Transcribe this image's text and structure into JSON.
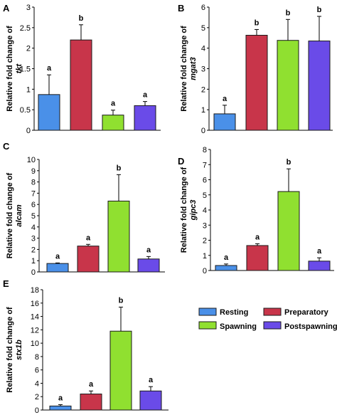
{
  "legend": {
    "items": [
      {
        "label": "Resting",
        "color": "#4a90e8"
      },
      {
        "label": "Preparatory",
        "color": "#c8354a"
      },
      {
        "label": "Spawning",
        "color": "#90e030"
      },
      {
        "label": "Postspawning",
        "color": "#6a4be8"
      }
    ]
  },
  "chart_data": [
    {
      "type": "bar",
      "panel_label": "A",
      "ylabel_prefix": "Relative fold change of",
      "ylabel_gene": "tkt",
      "ylim": [
        0,
        3
      ],
      "yticks": [
        "0",
        "0.5",
        "1",
        "1.5",
        "2",
        "2.5",
        "3"
      ],
      "categories": [
        "Resting",
        "Preparatory",
        "Spawning",
        "Postspawning"
      ],
      "values": [
        0.87,
        2.2,
        0.37,
        0.6
      ],
      "errors": [
        0.48,
        0.37,
        0.12,
        0.1
      ],
      "sig": [
        "a",
        "b",
        "a",
        "a"
      ],
      "colors": [
        "#4a90e8",
        "#c8354a",
        "#90e030",
        "#6a4be8"
      ]
    },
    {
      "type": "bar",
      "panel_label": "B",
      "ylabel_prefix": "Relative fold change of",
      "ylabel_gene": "mgat3",
      "ylim": [
        0,
        6
      ],
      "yticks": [
        "0",
        "1",
        "2",
        "3",
        "4",
        "5",
        "6"
      ],
      "categories": [
        "Resting",
        "Preparatory",
        "Spawning",
        "Postspawning"
      ],
      "values": [
        0.8,
        4.63,
        4.38,
        4.35
      ],
      "errors": [
        0.42,
        0.28,
        1.02,
        1.2
      ],
      "sig": [
        "a",
        "b",
        "b",
        "b"
      ],
      "colors": [
        "#4a90e8",
        "#c8354a",
        "#90e030",
        "#6a4be8"
      ]
    },
    {
      "type": "bar",
      "panel_label": "C",
      "ylabel_prefix": "Relative fold change of",
      "ylabel_gene": "alcam",
      "ylim": [
        0,
        10
      ],
      "yticks": [
        "0",
        "1",
        "2",
        "3",
        "4",
        "5",
        "6",
        "7",
        "8",
        "9",
        "10"
      ],
      "categories": [
        "Resting",
        "Preparatory",
        "Spawning",
        "Postspawning"
      ],
      "values": [
        0.75,
        2.3,
        6.3,
        1.15
      ],
      "errors": [
        0.05,
        0.15,
        2.35,
        0.22
      ],
      "sig": [
        "a",
        "a",
        "b",
        "a"
      ],
      "colors": [
        "#4a90e8",
        "#c8354a",
        "#90e030",
        "#6a4be8"
      ]
    },
    {
      "type": "bar",
      "panel_label": "D",
      "ylabel_prefix": "Relative fold change of",
      "ylabel_gene": "gipc3",
      "ylim": [
        0,
        8
      ],
      "yticks": [
        "0",
        "1",
        "2",
        "3",
        "4",
        "5",
        "6",
        "7",
        "8"
      ],
      "categories": [
        "Resting",
        "Preparatory",
        "Spawning",
        "Postspawning"
      ],
      "values": [
        0.33,
        1.65,
        5.22,
        0.62
      ],
      "errors": [
        0.1,
        0.12,
        1.5,
        0.22
      ],
      "sig": [
        "a",
        "a",
        "b",
        "a"
      ],
      "colors": [
        "#4a90e8",
        "#c8354a",
        "#90e030",
        "#6a4be8"
      ]
    },
    {
      "type": "bar",
      "panel_label": "E",
      "ylabel_prefix": "Relative fold change of",
      "ylabel_gene": "stx1b",
      "ylim": [
        0,
        18
      ],
      "yticks": [
        "0",
        "2",
        "4",
        "6",
        "8",
        "10",
        "12",
        "14",
        "16",
        "18"
      ],
      "categories": [
        "Resting",
        "Preparatory",
        "Spawning",
        "Postspawning"
      ],
      "values": [
        0.6,
        2.4,
        11.8,
        2.85
      ],
      "errors": [
        0.2,
        0.45,
        3.6,
        0.65
      ],
      "sig": [
        "a",
        "a",
        "b",
        "a"
      ],
      "colors": [
        "#4a90e8",
        "#c8354a",
        "#90e030",
        "#6a4be8"
      ]
    }
  ]
}
